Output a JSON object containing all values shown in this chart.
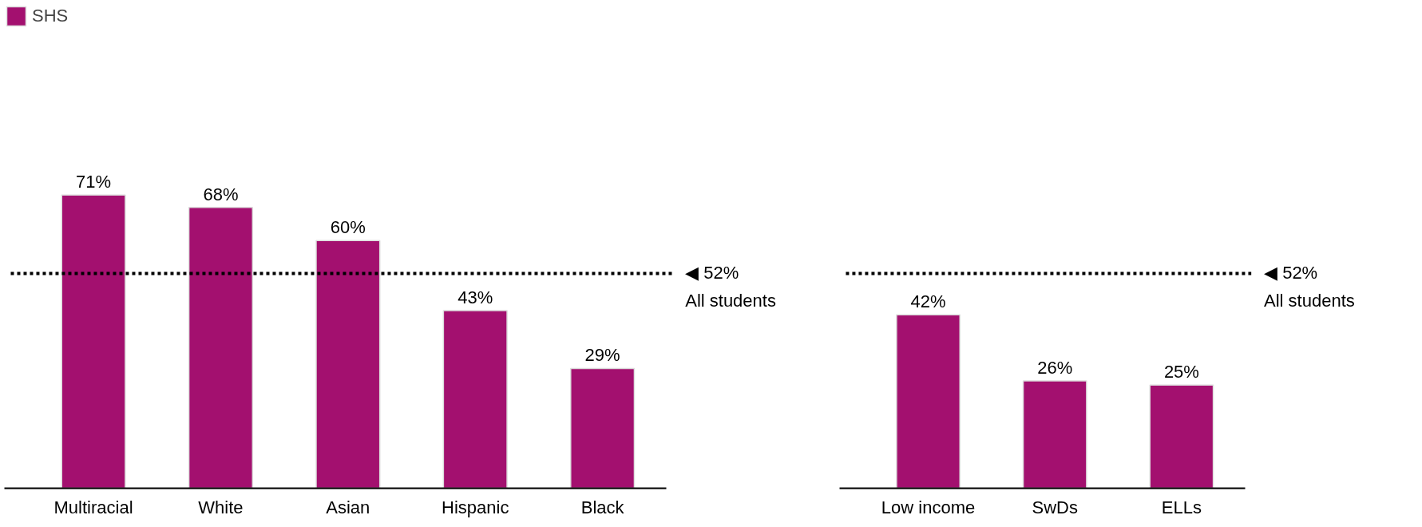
{
  "chart_data": [
    {
      "type": "bar",
      "categories": [
        "Multiracial",
        "White",
        "Asian",
        "Hispanic",
        "Black"
      ],
      "series": [
        {
          "name": "SHS",
          "color": "#a3106f",
          "values": [
            71,
            68,
            60,
            43,
            29
          ],
          "value_labels": [
            "71%",
            "68%",
            "60%",
            "43%",
            "29%"
          ]
        }
      ],
      "legend": "top left",
      "ref_lines": [
        {
          "axis": "y",
          "value": 52,
          "label": "◀ 52%\nAll students",
          "color": "#000000",
          "line_style": "dotted"
        }
      ]
    },
    {
      "type": "bar",
      "categories": [
        "Low income",
        "SwDs",
        "ELLs"
      ],
      "series": [
        {
          "color": "#a3106f",
          "values": [
            42,
            26,
            25
          ],
          "value_labels": [
            "42%",
            "26%",
            "25%"
          ]
        }
      ],
      "ref_lines": [
        {
          "axis": "y",
          "value": 52,
          "label": "◀ 52%\nAll students",
          "color": "#000000",
          "line_style": "dotted"
        }
      ]
    }
  ]
}
